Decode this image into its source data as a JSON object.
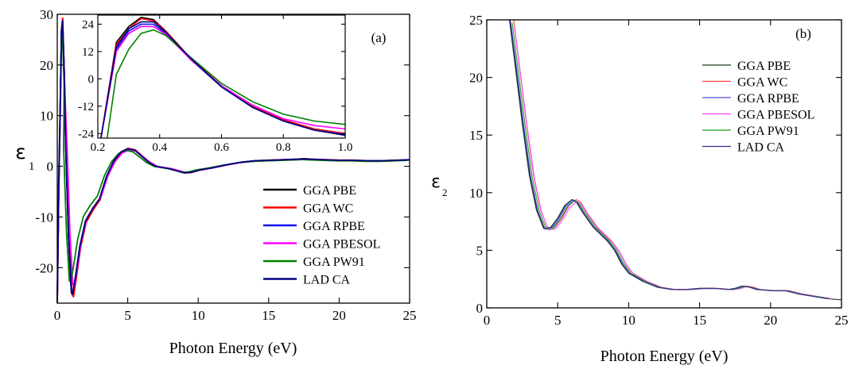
{
  "chart_data": [
    {
      "type": "line",
      "panel_label": "(a)",
      "xlabel": "Photon Energy (eV)",
      "ylabel_main": "ε",
      "ylabel_sub": "1",
      "xlim": [
        0,
        25
      ],
      "ylim": [
        -27,
        30
      ],
      "xticks": [
        0,
        5,
        10,
        15,
        20,
        25
      ],
      "yticks": [
        -20,
        -10,
        0,
        10,
        20,
        30
      ],
      "legend_position": "lower-right",
      "series": [
        {
          "name": "GGA PBE",
          "color": "#000000",
          "shift": 0.0,
          "ys": 1.0
        },
        {
          "name": "GGA WC",
          "color": "#ff0000",
          "shift": 0.05,
          "ys": 1.01
        },
        {
          "name": "GGA RPBE",
          "color": "#1010ee",
          "shift": 0.0,
          "ys": 0.98
        },
        {
          "name": "GGA PBESOL",
          "color": "#ff00ff",
          "shift": 0.1,
          "ys": 0.93
        },
        {
          "name": "GGA PW91",
          "color": "#008000",
          "shift": -0.15,
          "ys": 0.9
        },
        {
          "name": "LAD CA",
          "color": "#000080",
          "shift": 0.0,
          "ys": 0.99
        }
      ],
      "base_curve": {
        "x": [
          0.0,
          0.1,
          0.2,
          0.3,
          0.38,
          0.5,
          0.6,
          0.8,
          1.0,
          1.1,
          1.3,
          1.6,
          2.0,
          2.5,
          3.0,
          3.5,
          4.0,
          4.5,
          5.0,
          5.5,
          6.0,
          6.5,
          7.0,
          8.0,
          9.0,
          9.5,
          10.0,
          11.0,
          12.0,
          13.0,
          14.0,
          15.0,
          16.0,
          17.0,
          17.5,
          18.0,
          19.0,
          20.0,
          21.0,
          22.0,
          23.0,
          24.0,
          25.0
        ],
        "y": [
          -27.0,
          -5.0,
          10.0,
          27.0,
          29.0,
          18.0,
          4.0,
          -14.0,
          -25.0,
          -25.5,
          -22.0,
          -16.0,
          -11.0,
          -8.5,
          -6.5,
          -2.0,
          1.0,
          2.8,
          3.5,
          3.2,
          2.0,
          0.8,
          0.0,
          -0.5,
          -1.3,
          -1.2,
          -0.8,
          -0.3,
          0.3,
          0.8,
          1.1,
          1.2,
          1.3,
          1.4,
          1.5,
          1.4,
          1.3,
          1.2,
          1.2,
          1.1,
          1.1,
          1.2,
          1.3
        ]
      },
      "inset": {
        "xlim": [
          0.2,
          1.0
        ],
        "ylim": [
          -26,
          28
        ],
        "xticks": [
          0.2,
          0.4,
          0.6,
          0.8,
          1.0
        ],
        "xtick_labels": [
          "0.2",
          "0.4",
          "0.6",
          "0.8",
          "1.0"
        ],
        "yticks": [
          -24,
          -12,
          0,
          12,
          24
        ],
        "series": [
          {
            "name": "GGA PBE",
            "x": [
              0.21,
              0.26,
              0.3,
              0.34,
              0.38,
              0.42,
              0.5,
              0.6,
              0.7,
              0.8,
              0.9,
              1.0
            ],
            "y": [
              -26,
              16,
              23,
              27,
              26,
              21,
              9,
              -3,
              -12,
              -18,
              -22,
              -24
            ]
          },
          {
            "name": "GGA WC",
            "x": [
              0.21,
              0.26,
              0.3,
              0.34,
              0.38,
              0.42,
              0.5,
              0.6,
              0.7,
              0.8,
              0.9,
              1.0
            ],
            "y": [
              -26,
              15,
              22,
              26.5,
              25.5,
              21,
              9,
              -3,
              -12,
              -18,
              -22,
              -24
            ]
          },
          {
            "name": "GGA RPBE",
            "x": [
              0.21,
              0.26,
              0.3,
              0.34,
              0.38,
              0.42,
              0.5,
              0.6,
              0.7,
              0.8,
              0.9,
              1.0
            ],
            "y": [
              -26,
              13,
              21,
              24,
              24,
              20,
              8.5,
              -3.5,
              -12.5,
              -18.5,
              -22.5,
              -24.5
            ]
          },
          {
            "name": "GGA PBESOL",
            "x": [
              0.21,
              0.26,
              0.3,
              0.34,
              0.38,
              0.42,
              0.5,
              0.6,
              0.7,
              0.8,
              0.9,
              1.0
            ],
            "y": [
              -26,
              12,
              20,
              23,
              23,
              19.5,
              8.5,
              -3,
              -11.5,
              -17.5,
              -20.5,
              -22
            ]
          },
          {
            "name": "GGA PW91",
            "x": [
              0.23,
              0.26,
              0.3,
              0.34,
              0.38,
              0.42,
              0.5,
              0.6,
              0.7,
              0.8,
              0.9,
              1.0
            ],
            "y": [
              -26,
              2,
              13,
              20,
              21.5,
              19,
              9.5,
              -2,
              -10,
              -15.5,
              -18.5,
              -20
            ]
          },
          {
            "name": "LAD CA",
            "x": [
              0.21,
              0.26,
              0.3,
              0.34,
              0.38,
              0.42,
              0.5,
              0.6,
              0.7,
              0.8,
              0.9,
              1.0
            ],
            "y": [
              -26,
              14,
              22,
              25,
              25,
              20.5,
              9,
              -3.5,
              -12.5,
              -18.5,
              -22.5,
              -24.8
            ]
          }
        ]
      }
    },
    {
      "type": "line",
      "panel_label": "(b)",
      "xlabel": "Photon Energy (eV)",
      "ylabel_main": "ε",
      "ylabel_sub": "2",
      "xlim": [
        0,
        25
      ],
      "ylim": [
        0,
        25
      ],
      "xticks": [
        0,
        5,
        10,
        15,
        20,
        25
      ],
      "yticks": [
        0,
        5,
        10,
        15,
        20,
        25
      ],
      "legend_position": "top-right",
      "series": [
        {
          "name": "GGA PBE",
          "color": "#1a3a1a",
          "shift": 0.0,
          "ys": 1.0
        },
        {
          "name": "GGA WC",
          "color": "#ff4040",
          "shift": 0.3,
          "ys": 1.0
        },
        {
          "name": "GGA RPBE",
          "color": "#5050e0",
          "shift": 0.1,
          "ys": 0.99
        },
        {
          "name": "GGA PBESOL",
          "color": "#ff40ff",
          "shift": 0.35,
          "ys": 0.98
        },
        {
          "name": "GGA PW91",
          "color": "#20a020",
          "shift": 0.2,
          "ys": 0.99
        },
        {
          "name": "LAD CA",
          "color": "#303090",
          "shift": 0.05,
          "ys": 1.0
        }
      ],
      "base_curve": {
        "x": [
          1.6,
          2.0,
          2.5,
          3.0,
          3.5,
          4.0,
          4.5,
          5.0,
          5.5,
          6.0,
          6.3,
          6.8,
          7.5,
          8.0,
          8.5,
          9.0,
          9.5,
          10.0,
          11.0,
          12.0,
          13.0,
          14.0,
          15.0,
          16.0,
          17.0,
          17.5,
          18.0,
          18.5,
          19.0,
          20.0,
          21.0,
          22.0,
          23.0,
          24.0,
          25.0
        ],
        "y": [
          25.0,
          21.0,
          16.0,
          11.5,
          8.5,
          6.9,
          7.0,
          7.8,
          8.9,
          9.4,
          9.2,
          8.2,
          7.0,
          6.4,
          5.8,
          5.0,
          3.8,
          3.0,
          2.3,
          1.8,
          1.6,
          1.6,
          1.7,
          1.7,
          1.6,
          1.7,
          1.9,
          1.8,
          1.6,
          1.5,
          1.5,
          1.2,
          1.0,
          0.8,
          0.7
        ]
      }
    }
  ]
}
